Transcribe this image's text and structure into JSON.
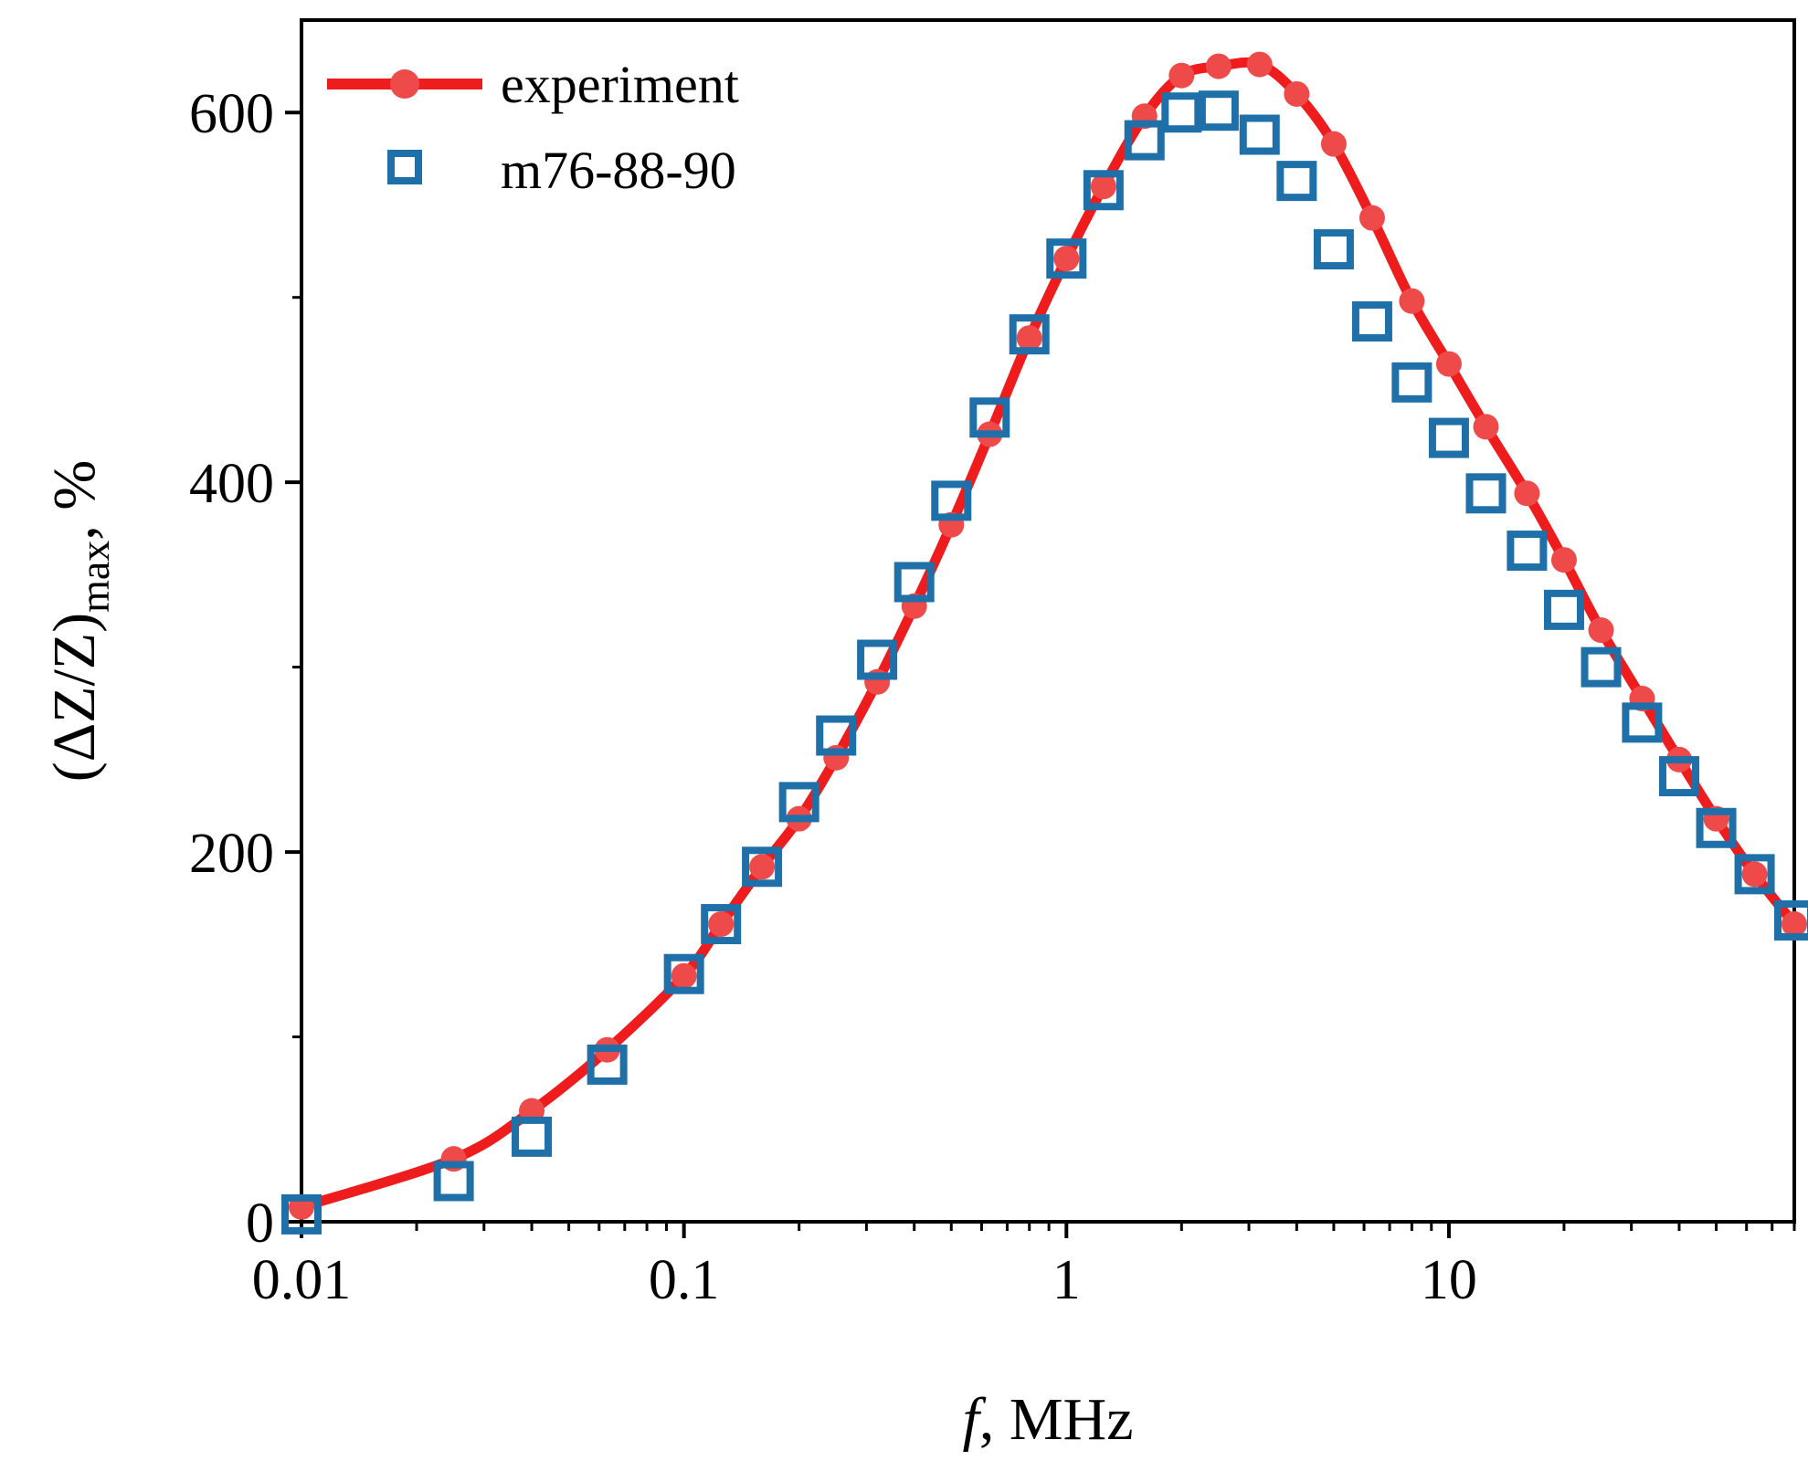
{
  "chart_data": {
    "type": "line",
    "title": "",
    "xlabel": {
      "italic": "f",
      "rest": ", MHz"
    },
    "ylabel": {
      "main": "(ΔZ/Z)",
      "sub": "max",
      "suffix": ", %"
    },
    "xscale": "log",
    "xlim": [
      0.01,
      80
    ],
    "ylim": [
      0,
      650
    ],
    "x_ticks": [
      0.01,
      0.1,
      1,
      10
    ],
    "x_tick_labels": [
      "0.01",
      "0.1",
      "1",
      "10"
    ],
    "y_ticks": [
      0,
      200,
      400,
      600
    ],
    "y_tick_labels": [
      "0",
      "200",
      "400",
      "600"
    ],
    "grid": false,
    "legend_position": "top-left",
    "colors": {
      "experiment": "#ee1c1c",
      "experiment_marker": "#ef4a4a",
      "model": "#1f6fa8"
    },
    "series": [
      {
        "name": "experiment",
        "style": "line-with-circles",
        "x": [
          0.01,
          0.025,
          0.04,
          0.063,
          0.1,
          0.125,
          0.16,
          0.2,
          0.25,
          0.32,
          0.4,
          0.5,
          0.63,
          0.8,
          1.0,
          1.25,
          1.6,
          2.0,
          2.5,
          3.2,
          4.0,
          5.0,
          6.3,
          8.0,
          10,
          12.5,
          16,
          20,
          25,
          32,
          40,
          50,
          63,
          80
        ],
        "y": [
          8,
          34,
          60,
          93,
          133,
          161,
          192,
          218,
          251,
          292,
          333,
          377,
          426,
          478,
          521,
          560,
          598,
          620,
          625,
          626,
          610,
          583,
          543,
          498,
          464,
          430,
          394,
          358,
          320,
          283,
          250,
          218,
          188,
          161
        ]
      },
      {
        "name": "m76-88-90",
        "style": "open-squares",
        "x": [
          0.01,
          0.025,
          0.04,
          0.063,
          0.1,
          0.125,
          0.16,
          0.2,
          0.25,
          0.32,
          0.4,
          0.5,
          0.63,
          0.8,
          1.0,
          1.25,
          1.6,
          2.0,
          2.5,
          3.2,
          4.0,
          5.0,
          6.3,
          8.0,
          10,
          12.5,
          16,
          20,
          25,
          32,
          40,
          50,
          63,
          80
        ],
        "y": [
          4,
          22,
          46,
          85,
          134,
          161,
          192,
          227,
          263,
          304,
          346,
          390,
          435,
          480,
          521,
          558,
          585,
          600,
          601,
          588,
          563,
          526,
          487,
          454,
          424,
          394,
          363,
          331,
          300,
          270,
          241,
          213,
          188,
          163
        ]
      }
    ]
  }
}
